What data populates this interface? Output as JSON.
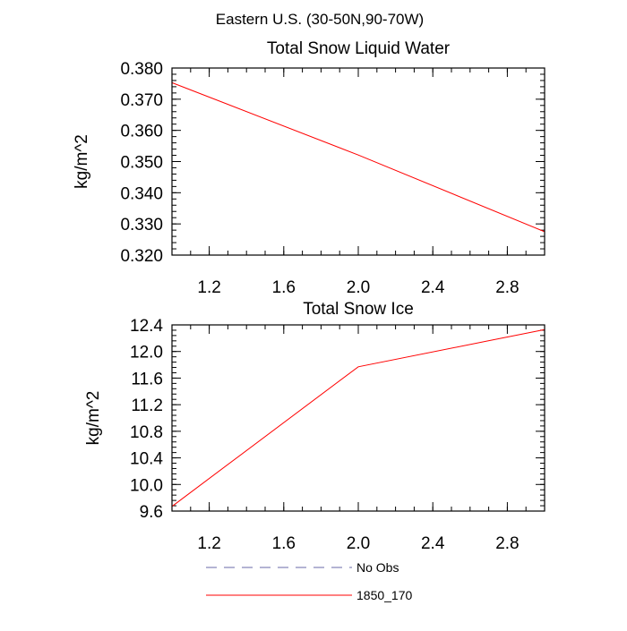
{
  "figure": {
    "title": "Eastern U.S. (30-50N,90-70W)"
  },
  "chart_data": [
    {
      "type": "line",
      "title": "Total Snow Liquid Water",
      "xlabel": "",
      "ylabel": "kg/m^2",
      "xlim": [
        1.0,
        3.0
      ],
      "ylim": [
        0.32,
        0.38
      ],
      "xticks": [
        1.2,
        1.6,
        2.0,
        2.4,
        2.8
      ],
      "xtick_labels": [
        "1.2",
        "1.6",
        "2.0",
        "2.4",
        "2.8"
      ],
      "yticks": [
        0.32,
        0.33,
        0.34,
        0.35,
        0.36,
        0.37,
        0.38
      ],
      "ytick_labels": [
        "0.320",
        "0.330",
        "0.340",
        "0.350",
        "0.360",
        "0.370",
        "0.380"
      ],
      "grid": false,
      "series": [
        {
          "name": "1850_170",
          "color": "#ff0000",
          "x": [
            1.0,
            2.0,
            3.0
          ],
          "values": [
            0.3753,
            0.3521,
            0.3275
          ]
        }
      ]
    },
    {
      "type": "line",
      "title": "Total Snow Ice",
      "xlabel": "",
      "ylabel": "kg/m^2",
      "xlim": [
        1.0,
        3.0
      ],
      "ylim": [
        9.6,
        12.4
      ],
      "xticks": [
        1.2,
        1.6,
        2.0,
        2.4,
        2.8
      ],
      "xtick_labels": [
        "1.2",
        "1.6",
        "2.0",
        "2.4",
        "2.8"
      ],
      "yticks": [
        9.6,
        10.0,
        10.4,
        10.8,
        11.2,
        11.6,
        12.0,
        12.4
      ],
      "ytick_labels": [
        "9.6",
        "10.0",
        "10.4",
        "10.8",
        "11.2",
        "11.6",
        "12.0",
        "12.4"
      ],
      "grid": false,
      "series": [
        {
          "name": "1850_170",
          "color": "#ff0000",
          "x": [
            1.0,
            2.0,
            3.0
          ],
          "values": [
            9.67,
            11.77,
            12.33
          ]
        }
      ]
    }
  ],
  "legend": {
    "placement": "bottom",
    "items": [
      {
        "label": "No Obs",
        "color": "#6a6aa8",
        "style": "dashed"
      },
      {
        "label": "1850_170",
        "color": "#ff0000",
        "style": "solid"
      }
    ]
  }
}
